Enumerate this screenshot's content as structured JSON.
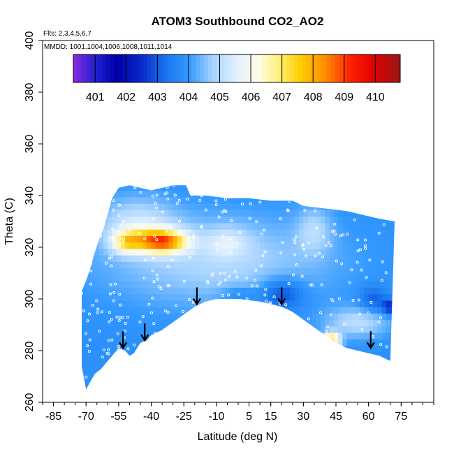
{
  "chart_data": {
    "type": "heatmap",
    "title": "ATOM3 Southbound CO2_AO2",
    "annotation_flights": "Flts: 2,3,4,5,6,7",
    "annotation_dates": "MMDD: 1001,1004,1006,1008,1011,1014",
    "xlabel": "Latitude (deg N)",
    "ylabel": "Theta (C)",
    "xlim": [
      -90,
      90
    ],
    "ylim": [
      260,
      400
    ],
    "x_ticks": [
      "-85",
      "-70",
      "-55",
      "-40",
      "-25",
      "-10",
      "5",
      "15",
      "30",
      "45",
      "60",
      "75"
    ],
    "x_tick_values": [
      -85,
      -70,
      -55,
      -40,
      -25,
      -10,
      5,
      15,
      30,
      45,
      60,
      75
    ],
    "y_ticks": [
      "260",
      "280",
      "300",
      "320",
      "340",
      "360",
      "380",
      "400"
    ],
    "y_tick_values": [
      260,
      280,
      300,
      320,
      340,
      360,
      380,
      400
    ],
    "colorbar": {
      "labels": [
        "401",
        "402",
        "403",
        "404",
        "405",
        "406",
        "407",
        "408",
        "409",
        "410"
      ],
      "values": [
        401,
        402,
        403,
        404,
        405,
        406,
        407,
        408,
        409,
        410
      ],
      "range": [
        400.3,
        410.8
      ],
      "stops": [
        {
          "v": 400.3,
          "c": "#8a2be2"
        },
        {
          "v": 401.0,
          "c": "#2020d0"
        },
        {
          "v": 401.7,
          "c": "#0000a8"
        },
        {
          "v": 402.5,
          "c": "#0a2ac8"
        },
        {
          "v": 403.3,
          "c": "#1a78f0"
        },
        {
          "v": 404.0,
          "c": "#3399ff"
        },
        {
          "v": 404.8,
          "c": "#a8d4ff"
        },
        {
          "v": 405.6,
          "c": "#e6f2ff"
        },
        {
          "v": 406.3,
          "c": "#fffce0"
        },
        {
          "v": 406.9,
          "c": "#ffef7a"
        },
        {
          "v": 407.6,
          "c": "#ffcc00"
        },
        {
          "v": 408.4,
          "c": "#ff8c00"
        },
        {
          "v": 409.2,
          "c": "#ff2000"
        },
        {
          "v": 410.0,
          "c": "#dd0000"
        },
        {
          "v": 410.8,
          "c": "#9a1818"
        }
      ]
    },
    "coverage_bottom": [
      [
        -72,
        274
      ],
      [
        -70,
        265
      ],
      [
        -68,
        268
      ],
      [
        -66,
        271
      ],
      [
        -63,
        273
      ],
      [
        -60,
        276
      ],
      [
        -57,
        279
      ],
      [
        -55,
        281
      ],
      [
        -52,
        280
      ],
      [
        -50,
        278
      ],
      [
        -48,
        279
      ],
      [
        -45,
        283
      ],
      [
        -42,
        284
      ],
      [
        -40,
        286
      ],
      [
        -35,
        288
      ],
      [
        -30,
        291
      ],
      [
        -25,
        294
      ],
      [
        -20,
        297
      ],
      [
        -15,
        299
      ],
      [
        -10,
        300
      ],
      [
        0,
        300
      ],
      [
        10,
        299
      ],
      [
        15,
        298
      ],
      [
        20,
        297
      ],
      [
        25,
        295
      ],
      [
        30,
        292
      ],
      [
        35,
        289
      ],
      [
        40,
        286
      ],
      [
        45,
        283
      ],
      [
        50,
        281
      ],
      [
        55,
        280
      ],
      [
        60,
        279
      ],
      [
        65,
        278
      ],
      [
        70,
        276
      ]
    ],
    "coverage_top": [
      [
        -72,
        303
      ],
      [
        -70,
        307
      ],
      [
        -68,
        312
      ],
      [
        -66,
        318
      ],
      [
        -64,
        323
      ],
      [
        -62,
        327
      ],
      [
        -60,
        333
      ],
      [
        -58,
        339
      ],
      [
        -55,
        343
      ],
      [
        -50,
        344
      ],
      [
        -45,
        343
      ],
      [
        -40,
        342
      ],
      [
        -30,
        344
      ],
      [
        -24,
        344
      ],
      [
        -22,
        340
      ],
      [
        -15,
        340
      ],
      [
        -5,
        339
      ],
      [
        5,
        339
      ],
      [
        15,
        338
      ],
      [
        25,
        338
      ],
      [
        30,
        336
      ],
      [
        40,
        335
      ],
      [
        50,
        334
      ],
      [
        60,
        332
      ],
      [
        65,
        331
      ],
      [
        72,
        330
      ]
    ],
    "fields": [
      {
        "x": -10,
        "y": 315,
        "sx": 55,
        "sy": 18,
        "a": 1.1
      },
      {
        "x": -47,
        "y": 330,
        "sx": 18,
        "sy": 10,
        "a": 1.1
      },
      {
        "x": -40,
        "y": 323,
        "sx": 14,
        "sy": 5,
        "a": 2.6
      },
      {
        "x": -33,
        "y": 322,
        "sx": 10,
        "sy": 4,
        "a": 2.2
      },
      {
        "x": -52,
        "y": 322,
        "sx": 6,
        "sy": 4,
        "a": 1.6
      },
      {
        "x": -5,
        "y": 322,
        "sx": 10,
        "sy": 6,
        "a": 0.9
      },
      {
        "x": 35,
        "y": 327,
        "sx": 8,
        "sy": 9,
        "a": 0.9
      },
      {
        "x": 43,
        "y": 284,
        "sx": 4,
        "sy": 3,
        "a": 3.5
      },
      {
        "x": 55,
        "y": 291,
        "sx": 15,
        "sy": 6,
        "a": 1.2
      },
      {
        "x": 20,
        "y": 302,
        "sx": 10,
        "sy": 6,
        "a": -1.3
      },
      {
        "x": 70,
        "y": 297,
        "sx": 4,
        "sy": 3,
        "a": -1.5
      },
      {
        "x": 62,
        "y": 300,
        "sx": 6,
        "sy": 5,
        "a": -0.9
      },
      {
        "x": 0,
        "y": 302,
        "sx": 8,
        "sy": 3,
        "a": -0.6
      }
    ],
    "base_value": 403.8,
    "ascent_markers": [
      {
        "lat": -53,
        "theta": 281
      },
      {
        "lat": -43,
        "theta": 284
      },
      {
        "lat": -19,
        "theta": 298
      },
      {
        "lat": 20,
        "theta": 298
      },
      {
        "lat": 61,
        "theta": 281
      }
    ]
  }
}
